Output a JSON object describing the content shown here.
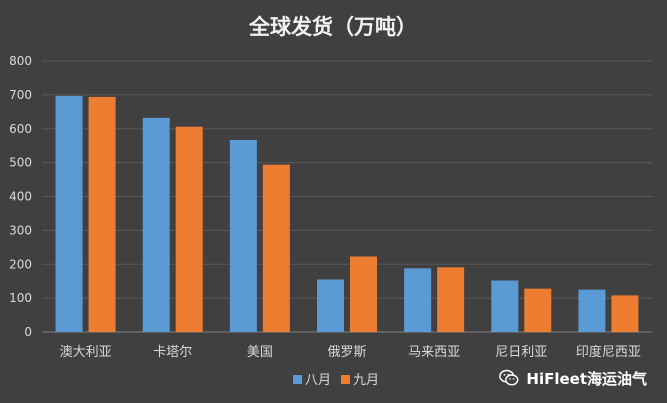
{
  "chart_data": {
    "type": "bar",
    "title": "全球发货（万吨）",
    "categories": [
      "澳大利亚",
      "卡塔尔",
      "美国",
      "俄罗斯",
      "马来西亚",
      "尼日利亚",
      "印度尼西亚"
    ],
    "series": [
      {
        "name": "八月",
        "values": [
          697,
          632,
          567,
          155,
          188,
          152,
          125
        ]
      },
      {
        "name": "九月",
        "values": [
          694,
          606,
          494,
          223,
          191,
          128,
          108
        ]
      }
    ],
    "ylim": [
      0,
      800
    ],
    "yticks": [
      0,
      100,
      200,
      300,
      400,
      500,
      600,
      700,
      800
    ],
    "grid": true,
    "legend_position": "bottom-center",
    "colors": {
      "series": [
        "#5b9bd5",
        "#ed7d31"
      ],
      "background": "#404040",
      "grid": "#595959",
      "text": "#d9d9d9"
    }
  },
  "watermark": {
    "text": "HiFleet海运油气",
    "icon": "wechat-icon"
  }
}
